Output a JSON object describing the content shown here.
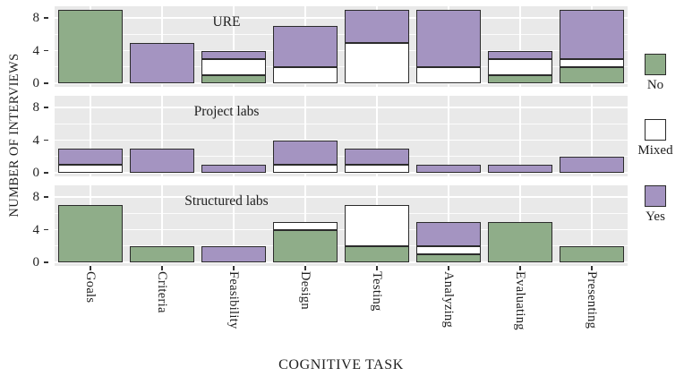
{
  "chart_data": {
    "type": "bar",
    "stacked": true,
    "xlabel": "COGNITIVE TASK",
    "ylabel": "NUMBER OF INTERVIEWS",
    "categories": [
      "Goals",
      "Criteria",
      "Feasibility",
      "Design",
      "Testing",
      "Analyzing",
      "Evaluating",
      "Presenting"
    ],
    "y_ticks": [
      0,
      4,
      8
    ],
    "y_minor_gridlines": [
      2,
      6
    ],
    "ylim": [
      0,
      9.5
    ],
    "legend_position": "right",
    "stack_order_bottom_to_top": [
      "No",
      "Mixed",
      "Yes"
    ],
    "legend": [
      {
        "label": "No",
        "color": "#8fad89"
      },
      {
        "label": "Mixed",
        "color": "#ffffff"
      },
      {
        "label": "Yes",
        "color": "#a494c1"
      }
    ],
    "facets": [
      {
        "title": "URE",
        "series": [
          {
            "name": "No",
            "values": [
              9,
              0,
              1,
              0,
              0,
              0,
              1,
              2
            ]
          },
          {
            "name": "Mixed",
            "values": [
              0,
              0,
              2,
              2,
              5,
              2,
              2,
              1
            ]
          },
          {
            "name": "Yes",
            "values": [
              0,
              5,
              1,
              5,
              4,
              7,
              1,
              6
            ]
          }
        ]
      },
      {
        "title": "Project labs",
        "series": [
          {
            "name": "No",
            "values": [
              0,
              0,
              0,
              0,
              0,
              0,
              0,
              0
            ]
          },
          {
            "name": "Mixed",
            "values": [
              1,
              0,
              0,
              1,
              1,
              0,
              0,
              0
            ]
          },
          {
            "name": "Yes",
            "values": [
              2,
              3,
              1,
              3,
              2,
              1,
              1,
              2
            ]
          }
        ]
      },
      {
        "title": "Structured labs",
        "series": [
          {
            "name": "No",
            "values": [
              7,
              2,
              0,
              4,
              2,
              1,
              5,
              2
            ]
          },
          {
            "name": "Mixed",
            "values": [
              0,
              0,
              0,
              1,
              5,
              1,
              0,
              0
            ]
          },
          {
            "name": "Yes",
            "values": [
              0,
              0,
              2,
              0,
              0,
              3,
              0,
              0
            ]
          }
        ]
      }
    ],
    "styles": {
      "bar_border": "#2b2b2b",
      "panel_bg": "#e9e9e9",
      "gridline": "#ffffff",
      "text": "#1f1f1f"
    }
  }
}
